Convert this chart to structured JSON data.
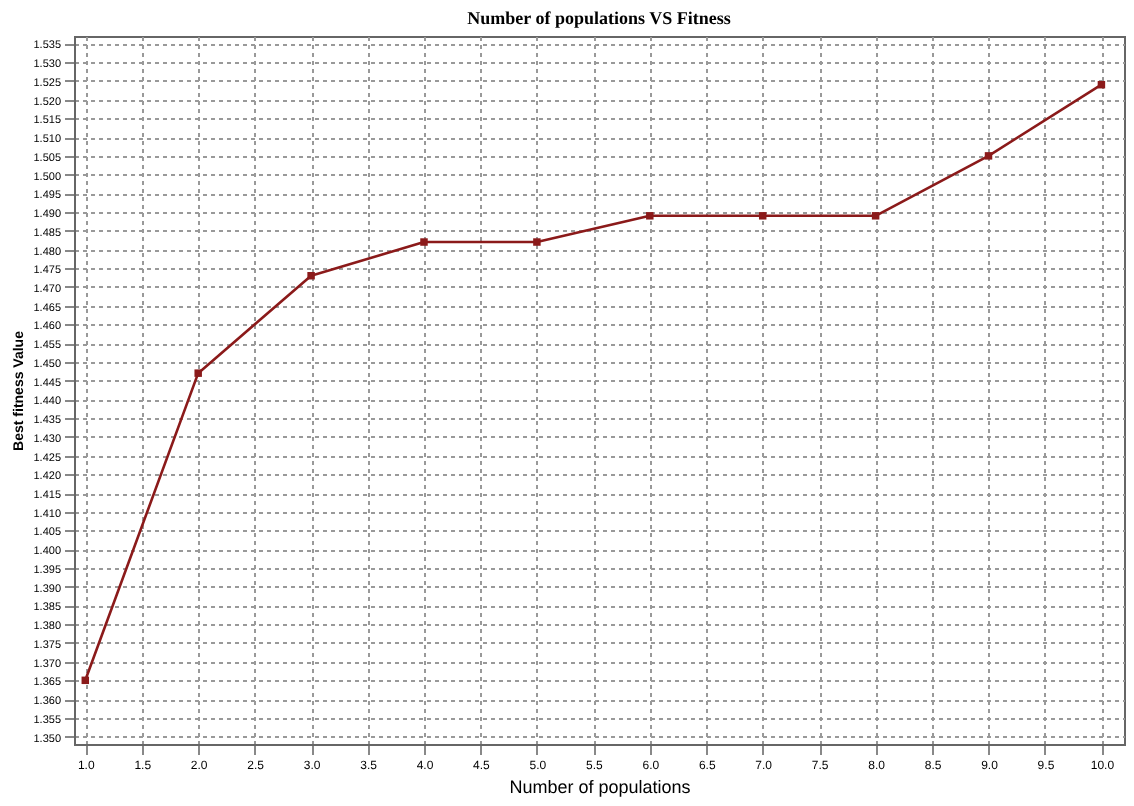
{
  "chart_data": {
    "type": "line",
    "title": "Number of populations VS Fitness",
    "xlabel": "Number of populations",
    "ylabel": "Best fitness Value",
    "x": [
      1,
      2,
      3,
      4,
      5,
      6,
      7,
      8,
      9,
      10
    ],
    "series": [
      {
        "color": "#8b1a1a",
        "values": [
          1.365,
          1.447,
          1.473,
          1.482,
          1.482,
          1.489,
          1.489,
          1.489,
          1.505,
          1.524
        ]
      }
    ],
    "xlim": [
      0.9,
      10.2
    ],
    "ylim": [
      1.348,
      1.537
    ],
    "xticks": [
      {
        "value": 1,
        "label": "1.0"
      },
      {
        "value": 1.5,
        "label": "1.5"
      },
      {
        "value": 2,
        "label": "2.0"
      },
      {
        "value": 2.5,
        "label": "2.5"
      },
      {
        "value": 3,
        "label": "3.0"
      },
      {
        "value": 3.5,
        "label": "3.5"
      },
      {
        "value": 4,
        "label": "4.0"
      },
      {
        "value": 4.5,
        "label": "4.5"
      },
      {
        "value": 5,
        "label": "5.0"
      },
      {
        "value": 5.5,
        "label": "5.5"
      },
      {
        "value": 6,
        "label": "6.0"
      },
      {
        "value": 6.5,
        "label": "6.5"
      },
      {
        "value": 7,
        "label": "7.0"
      },
      {
        "value": 7.5,
        "label": "7.5"
      },
      {
        "value": 8,
        "label": "8.0"
      },
      {
        "value": 8.5,
        "label": "8.5"
      },
      {
        "value": 9,
        "label": "9.0"
      },
      {
        "value": 9.5,
        "label": "9.5"
      },
      {
        "value": 10,
        "label": "10.0"
      }
    ],
    "yticks": [
      {
        "value": 1.35,
        "label": "1.350"
      },
      {
        "value": 1.355,
        "label": "1.355"
      },
      {
        "value": 1.36,
        "label": "1.360"
      },
      {
        "value": 1.365,
        "label": "1.365"
      },
      {
        "value": 1.37,
        "label": "1.370"
      },
      {
        "value": 1.375,
        "label": "1.375"
      },
      {
        "value": 1.38,
        "label": "1.380"
      },
      {
        "value": 1.385,
        "label": "1.385"
      },
      {
        "value": 1.39,
        "label": "1.390"
      },
      {
        "value": 1.395,
        "label": "1.395"
      },
      {
        "value": 1.4,
        "label": "1.400"
      },
      {
        "value": 1.405,
        "label": "1.405"
      },
      {
        "value": 1.41,
        "label": "1.410"
      },
      {
        "value": 1.415,
        "label": "1.415"
      },
      {
        "value": 1.42,
        "label": "1.420"
      },
      {
        "value": 1.425,
        "label": "1.425"
      },
      {
        "value": 1.43,
        "label": "1.430"
      },
      {
        "value": 1.435,
        "label": "1.435"
      },
      {
        "value": 1.44,
        "label": "1.440"
      },
      {
        "value": 1.445,
        "label": "1.445"
      },
      {
        "value": 1.45,
        "label": "1.450"
      },
      {
        "value": 1.455,
        "label": "1.455"
      },
      {
        "value": 1.46,
        "label": "1.460"
      },
      {
        "value": 1.465,
        "label": "1.465"
      },
      {
        "value": 1.47,
        "label": "1.470"
      },
      {
        "value": 1.475,
        "label": "1.475"
      },
      {
        "value": 1.48,
        "label": "1.480"
      },
      {
        "value": 1.485,
        "label": "1.485"
      },
      {
        "value": 1.49,
        "label": "1.490"
      },
      {
        "value": 1.495,
        "label": "1.495"
      },
      {
        "value": 1.5,
        "label": "1.500"
      },
      {
        "value": 1.505,
        "label": "1.505"
      },
      {
        "value": 1.51,
        "label": "1.510"
      },
      {
        "value": 1.515,
        "label": "1.515"
      },
      {
        "value": 1.52,
        "label": "1.520"
      },
      {
        "value": 1.525,
        "label": "1.525"
      },
      {
        "value": 1.53,
        "label": "1.530"
      },
      {
        "value": 1.535,
        "label": "1.535"
      }
    ],
    "grid": true,
    "marker": "square",
    "line_style": "solid"
  }
}
